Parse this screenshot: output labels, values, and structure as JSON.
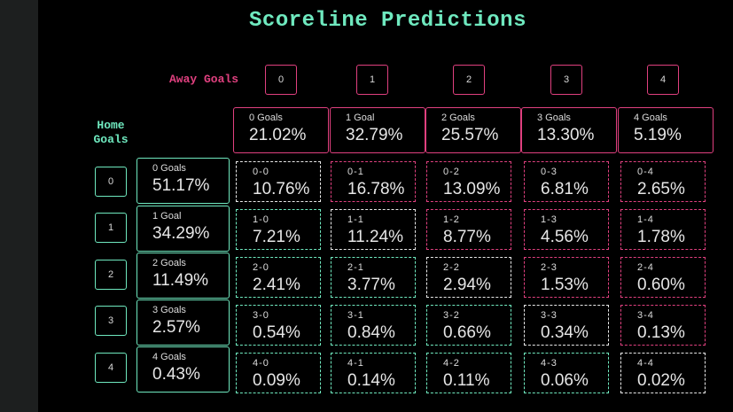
{
  "title": "Scoreline Predictions",
  "away_label": "Away Goals",
  "home_label": "Home Goals",
  "away_indices": [
    "0",
    "1",
    "2",
    "3",
    "4"
  ],
  "home_indices": [
    "0",
    "1",
    "2",
    "3",
    "4"
  ],
  "away_totals": [
    {
      "label": "0 Goals",
      "value": "21.02%"
    },
    {
      "label": "1 Goal",
      "value": "32.79%"
    },
    {
      "label": "2 Goals",
      "value": "25.57%"
    },
    {
      "label": "3 Goals",
      "value": "13.30%"
    },
    {
      "label": "4 Goals",
      "value": "5.19%"
    }
  ],
  "home_totals": [
    {
      "label": "0 Goals",
      "value": "51.17%"
    },
    {
      "label": "1 Goal",
      "value": "34.29%"
    },
    {
      "label": "2 Goals",
      "value": "11.49%"
    },
    {
      "label": "3 Goals",
      "value": "2.57%"
    },
    {
      "label": "4 Goals",
      "value": "0.43%"
    }
  ],
  "colors": {
    "home": "#6fe9bf",
    "away": "#e0407f",
    "draw": "#e8e8e8"
  },
  "grid": [
    [
      {
        "score": "0-0",
        "pct": "10.76%"
      },
      {
        "score": "0-1",
        "pct": "16.78%"
      },
      {
        "score": "0-2",
        "pct": "13.09%"
      },
      {
        "score": "0-3",
        "pct": "6.81%"
      },
      {
        "score": "0-4",
        "pct": "2.65%"
      }
    ],
    [
      {
        "score": "1-0",
        "pct": "7.21%"
      },
      {
        "score": "1-1",
        "pct": "11.24%"
      },
      {
        "score": "1-2",
        "pct": "8.77%"
      },
      {
        "score": "1-3",
        "pct": "4.56%"
      },
      {
        "score": "1-4",
        "pct": "1.78%"
      }
    ],
    [
      {
        "score": "2-0",
        "pct": "2.41%"
      },
      {
        "score": "2-1",
        "pct": "3.77%"
      },
      {
        "score": "2-2",
        "pct": "2.94%"
      },
      {
        "score": "2-3",
        "pct": "1.53%"
      },
      {
        "score": "2-4",
        "pct": "0.60%"
      }
    ],
    [
      {
        "score": "3-0",
        "pct": "0.54%"
      },
      {
        "score": "3-1",
        "pct": "0.84%"
      },
      {
        "score": "3-2",
        "pct": "0.66%"
      },
      {
        "score": "3-3",
        "pct": "0.34%"
      },
      {
        "score": "3-4",
        "pct": "0.13%"
      }
    ],
    [
      {
        "score": "4-0",
        "pct": "0.09%"
      },
      {
        "score": "4-1",
        "pct": "0.14%"
      },
      {
        "score": "4-2",
        "pct": "0.11%"
      },
      {
        "score": "4-3",
        "pct": "0.06%"
      },
      {
        "score": "4-4",
        "pct": "0.02%"
      }
    ]
  ]
}
